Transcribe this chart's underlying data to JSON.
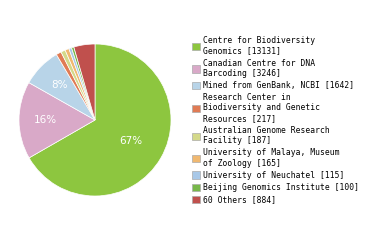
{
  "labels": [
    "Centre for Biodiversity\nGenomics [13131]",
    "Canadian Centre for DNA\nBarcoding [3246]",
    "Mined from GenBank, NCBI [1642]",
    "Research Center in\nBiodiversity and Genetic\nResources [217]",
    "Australian Genome Research\nFacility [187]",
    "University of Malaya, Museum\nof Zoology [165]",
    "University of Neuchatel [115]",
    "Beijing Genomics Institute [100]",
    "60 Others [884]"
  ],
  "values": [
    13131,
    3246,
    1642,
    217,
    187,
    165,
    115,
    100,
    884
  ],
  "colors": [
    "#8dc63f",
    "#d9a9c8",
    "#b8d4e8",
    "#e07b54",
    "#d4d98a",
    "#f0b870",
    "#a8c8e8",
    "#78b84a",
    "#c0504d"
  ],
  "figsize": [
    3.8,
    2.4
  ],
  "dpi": 100,
  "legend_fontsize": 5.8,
  "pct_fontsize": 7.5
}
